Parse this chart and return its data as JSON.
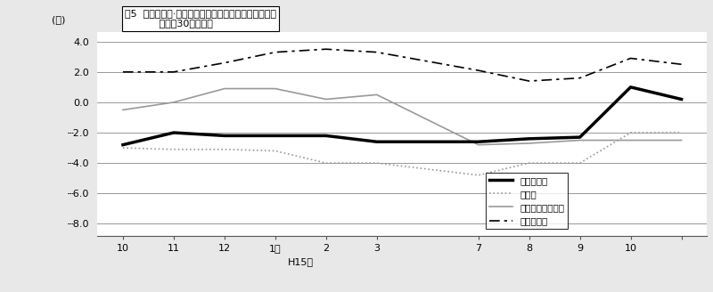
{
  "title_text": "図5  主要業種別·常用労働者数の推移（対前年同月比）\n           －規模30人以上－",
  "ylabel": "(％)",
  "xlabel": "H15年",
  "x_positions": [
    0,
    1,
    2,
    3,
    4,
    5,
    7,
    8,
    9,
    10,
    11
  ],
  "x_tick_positions": [
    0,
    1,
    2,
    3,
    4,
    5,
    7,
    8,
    9,
    10,
    11
  ],
  "x_tick_labels": [
    "10",
    "11",
    "12",
    "1月",
    "2",
    "3",
    "7",
    "8",
    "9",
    "10",
    ""
  ],
  "ylim": [
    -8.8,
    4.6
  ],
  "yticks": [
    4.0,
    2.0,
    0.0,
    -2.0,
    -4.0,
    -6.0,
    -8.0
  ],
  "ytick_labels": [
    "4.0",
    "2.0",
    "0.0",
    "┄2.0",
    "┄4.0",
    "┄6.0",
    "┄8.0"
  ],
  "chosa_y": [
    -2.8,
    -2.0,
    -2.2,
    -2.2,
    -2.2,
    -2.6,
    -2.6,
    -2.4,
    -2.3,
    1.0,
    0.2
  ],
  "seizou_y": [
    -3.0,
    -3.1,
    -3.1,
    -3.2,
    -4.0,
    -4.0,
    -4.8,
    -4.0,
    -4.0,
    -2.0,
    -2.0
  ],
  "oroshi_y": [
    -0.5,
    0.0,
    0.9,
    0.9,
    0.2,
    0.5,
    -2.8,
    -2.7,
    -2.5,
    -2.5,
    -2.5
  ],
  "service_y": [
    2.0,
    2.0,
    2.6,
    3.3,
    3.5,
    3.3,
    2.1,
    1.4,
    1.6,
    2.9,
    2.5
  ],
  "background_color": "#e8e8e8",
  "plot_bg_color": "#ffffff",
  "grid_color": "#999999",
  "legend_labels": [
    "調査産業計",
    "製造業",
    "卸・小売・飲食店",
    "サービス業"
  ]
}
